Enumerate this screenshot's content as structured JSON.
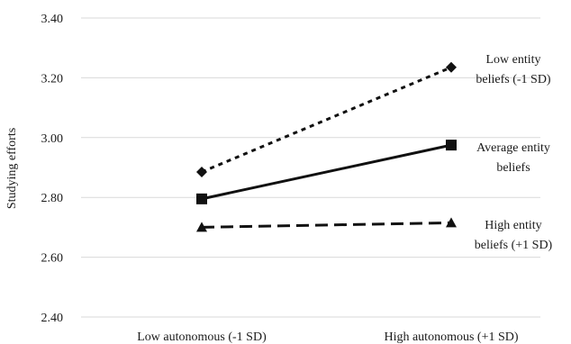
{
  "chart_data": {
    "type": "line",
    "categories": [
      "Low autonomous (-1 SD)",
      "High autonomous (+1 SD)"
    ],
    "ylabel": "Studying efforts",
    "ylim": [
      2.4,
      3.4
    ],
    "yticks": [
      "2.40",
      "2.60",
      "2.80",
      "3.00",
      "3.20",
      "3.40"
    ],
    "grid": true,
    "series": [
      {
        "name": "Low entity beliefs (-1 SD)",
        "label_lines": [
          "Low entity",
          "beliefs (-1 SD)"
        ],
        "values": [
          2.885,
          3.235
        ],
        "marker": "diamond",
        "line_style": "dotted"
      },
      {
        "name": "Average entity beliefs",
        "label_lines": [
          "Average entity",
          "beliefs"
        ],
        "values": [
          2.795,
          2.975
        ],
        "marker": "square",
        "line_style": "solid"
      },
      {
        "name": "High entity beliefs (+1 SD)",
        "label_lines": [
          "High entity",
          "beliefs (+1 SD)"
        ],
        "values": [
          2.7,
          2.715
        ],
        "marker": "triangle",
        "line_style": "dashed"
      }
    ]
  }
}
